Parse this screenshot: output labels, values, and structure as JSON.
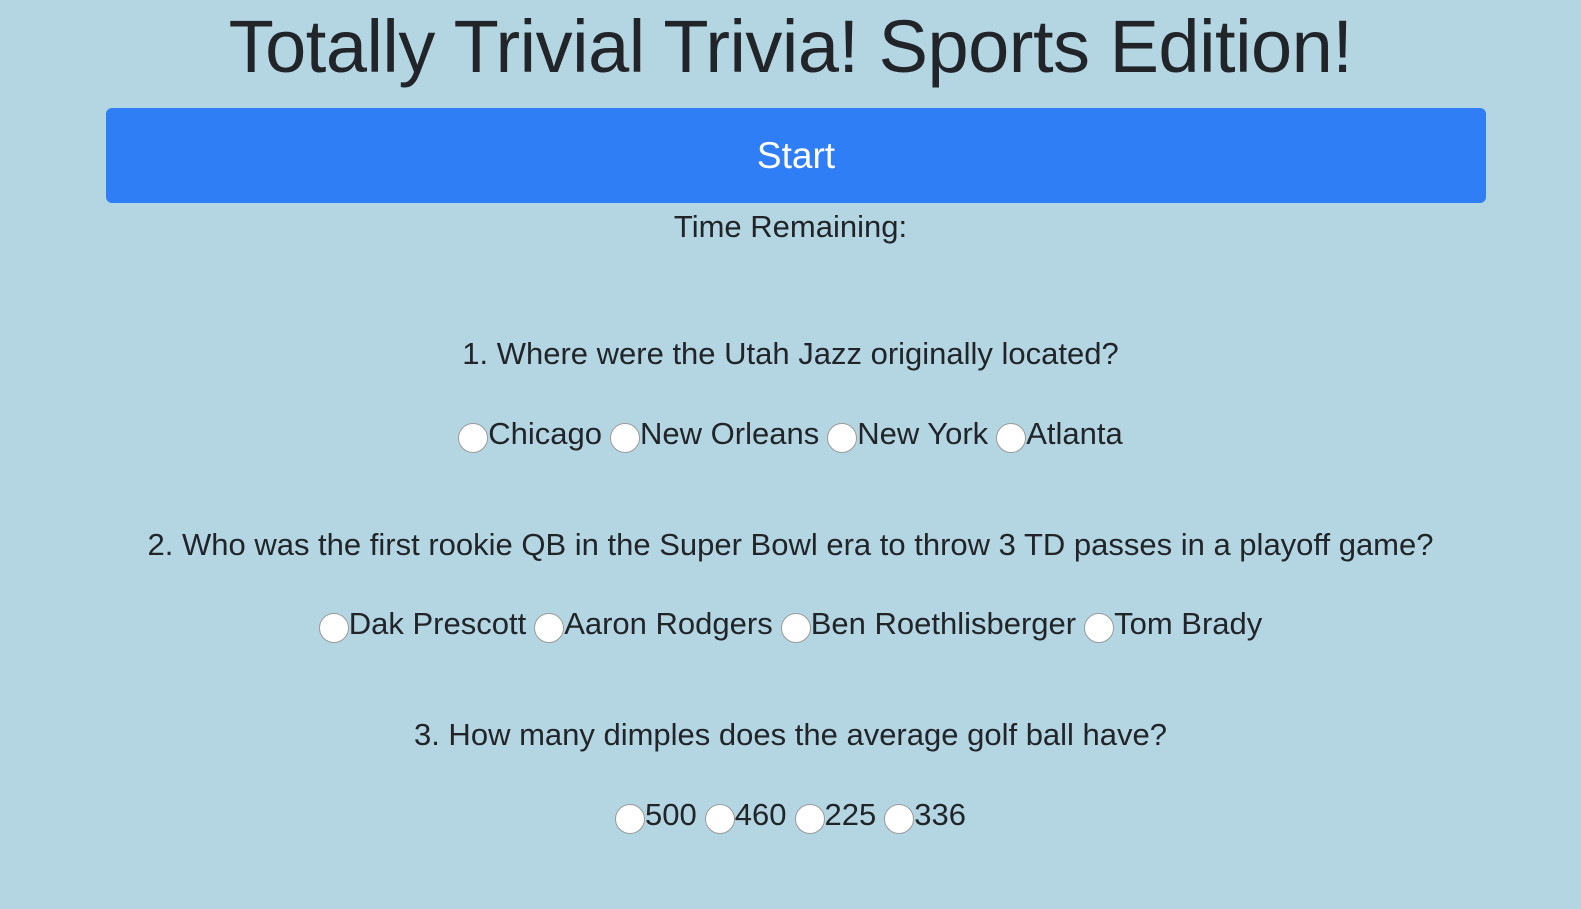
{
  "title": "Totally Trivial Trivia! Sports Edition!",
  "start_button": "Start",
  "timer_label": "Time Remaining:",
  "questions": [
    {
      "text": "1. Where were the Utah Jazz originally located?",
      "answers": [
        "Chicago",
        "New Orleans",
        "New York",
        "Atlanta"
      ]
    },
    {
      "text": "2. Who was the first rookie QB in the Super Bowl era to throw 3 TD passes in a playoff game?",
      "answers": [
        "Dak Prescott",
        "Aaron Rodgers",
        "Ben Roethlisberger",
        "Tom Brady"
      ]
    },
    {
      "text": "3. How many dimples does the average golf ball have?",
      "answers": [
        "500",
        "460",
        "225",
        "336"
      ]
    }
  ],
  "colors": {
    "background": "#b4d6e3",
    "button": "#307ef6",
    "text": "#212529"
  }
}
